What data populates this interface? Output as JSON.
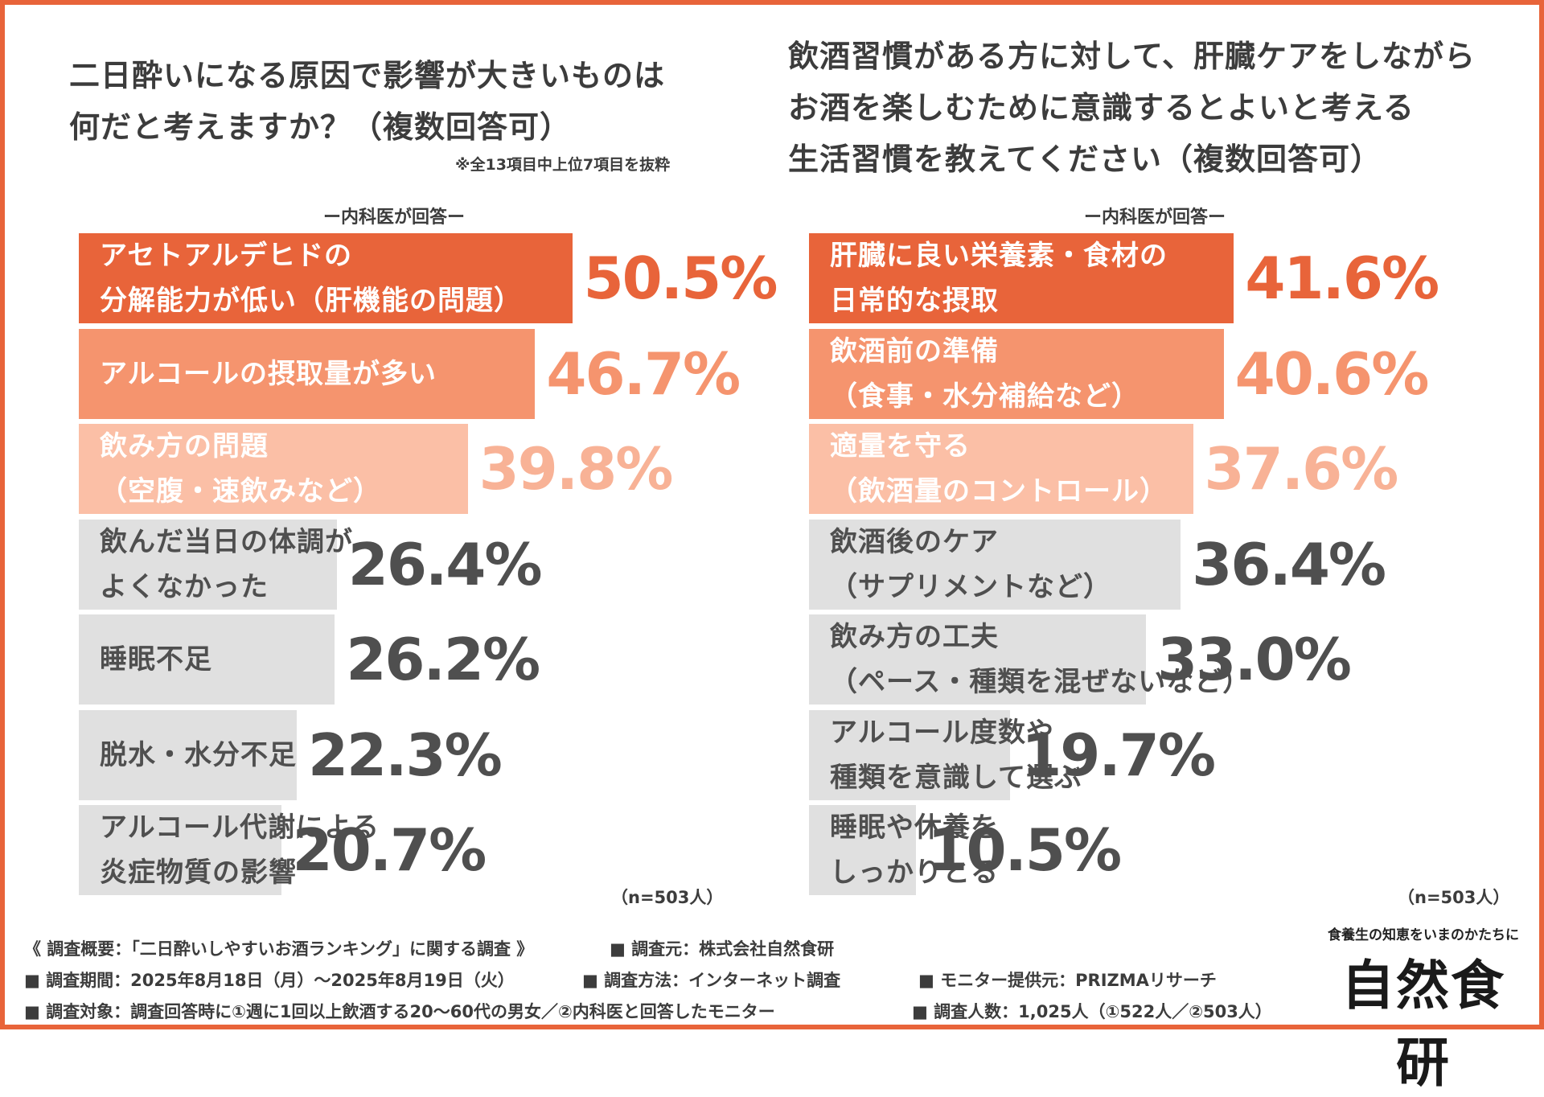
{
  "left": {
    "title_lines": [
      "二日酔いになる原因で影響が大きいものは",
      "何だと考えますか？（複数回答可）"
    ],
    "note": "※全13項目中上位7項目を抜粋",
    "subhead": "ー内科医が回答ー",
    "n_label": "（n=503人）"
  },
  "right": {
    "title_lines": [
      "飲酒習慣がある方に対して、肝臓ケアをしながら",
      "お酒を楽しむために意識するとよいと考える",
      "生活習慣を教えてください（複数回答可）"
    ],
    "subhead": "ー内科医が回答ー",
    "n_label": "（n=503人）"
  },
  "colors": {
    "rank1": "#e8643a",
    "rank2": "#f5946e",
    "rank3": "#fbbfa6",
    "gray": "#e0e0e0",
    "rank1_text": "#e8643a",
    "rank2_text": "#f5946e",
    "rank3_text": "#f8b296",
    "gray_text": "#4f4f4f",
    "label_white": "#ffffff",
    "label_dark": "#4f4f4f"
  },
  "chart_data": [
    {
      "type": "bar",
      "orientation": "horizontal",
      "title": "二日酔いになる原因で影響が大きいものは何だと考えますか？（複数回答可）",
      "categories": [
        "アセトアルデヒドの\n分解能力が低い（肝機能の問題）",
        "アルコールの摂取量が多い",
        "飲み方の問題\n（空腹・速飲みなど）",
        "飲んだ当日の体調が\nよくなかった",
        "睡眠不足",
        "脱水・水分不足",
        "アルコール代謝による\n炎症物質の影響"
      ],
      "values": [
        50.5,
        46.7,
        39.8,
        26.4,
        26.2,
        22.3,
        20.7
      ],
      "value_labels": [
        "50.5%",
        "46.7%",
        "39.8%",
        "26.4%",
        "26.2%",
        "22.3%",
        "20.7%"
      ],
      "unit": "%",
      "xlim": [
        0,
        100
      ],
      "grid": false
    },
    {
      "type": "bar",
      "orientation": "horizontal",
      "title": "飲酒習慣がある方に対して、肝臓ケアをしながらお酒を楽しむために意識するとよいと考える生活習慣を教えてください（複数回答可）",
      "categories": [
        "肝臓に良い栄養素・食材の\n日常的な摂取",
        "飲酒前の準備\n（食事・水分補給など）",
        "適量を守る\n（飲酒量のコントロール）",
        "飲酒後のケア\n（サプリメントなど）",
        "飲み方の工夫\n（ペース・種類を混ぜないなど）",
        "アルコール度数や\n種類を意識して選ぶ",
        "睡眠や休養を\nしっかりとる"
      ],
      "values": [
        41.6,
        40.6,
        37.6,
        36.4,
        33.0,
        19.7,
        10.5
      ],
      "value_labels": [
        "41.6%",
        "40.6%",
        "37.6%",
        "36.4%",
        "33.0%",
        "19.7%",
        "10.5%"
      ],
      "unit": "%",
      "xlim": [
        0,
        100
      ],
      "grid": false
    }
  ],
  "footer": {
    "line1a": "《 調査概要：「二日酔いしやすいお酒ランキング」に関する調査 》",
    "line1b": "■ 調査元：株式会社自然食研",
    "line2a": "■ 調査期間：2025年8月18日（月）～2025年8月19日（火）",
    "line2b": "■ 調査方法：インターネット調査",
    "line2c": "■ モニター提供元：PRIZMAリサーチ",
    "line3a": "■ 調査対象：調査回答時に①週に1回以上飲酒する20～60代の男女／②内科医と回答したモニター",
    "line3b": "■ 調査人数：1,025人（①522人／②503人）"
  },
  "brand": {
    "tagline": "食養生の知恵をいまのかたちに",
    "logo": "自然食研"
  }
}
